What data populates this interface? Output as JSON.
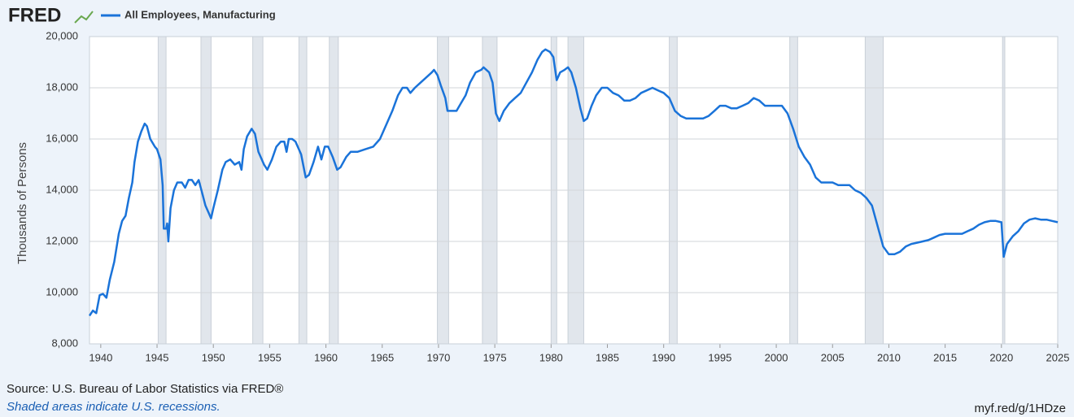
{
  "logo": "FRED",
  "chart_data": {
    "type": "line",
    "y_label": "Thousands of Persons",
    "x": [
      1939.0,
      1939.3,
      1939.6,
      1939.9,
      1940.2,
      1940.5,
      1940.8,
      1941.2,
      1941.6,
      1941.9,
      1942.2,
      1942.5,
      1942.8,
      1943.0,
      1943.3,
      1943.6,
      1943.9,
      1944.1,
      1944.4,
      1944.8,
      1945.0,
      1945.3,
      1945.5,
      1945.6,
      1945.8,
      1945.9,
      1946.0,
      1946.2,
      1946.5,
      1946.8,
      1947.2,
      1947.5,
      1947.8,
      1948.1,
      1948.4,
      1948.7,
      1949.0,
      1949.3,
      1949.6,
      1949.8,
      1950.0,
      1950.4,
      1950.8,
      1951.1,
      1951.5,
      1951.9,
      1952.3,
      1952.5,
      1952.7,
      1953.0,
      1953.4,
      1953.7,
      1954.0,
      1954.5,
      1954.8,
      1955.2,
      1955.6,
      1956.0,
      1956.3,
      1956.5,
      1956.7,
      1957.0,
      1957.3,
      1957.8,
      1958.2,
      1958.5,
      1958.9,
      1959.3,
      1959.6,
      1959.9,
      1960.2,
      1960.6,
      1961.0,
      1961.3,
      1961.8,
      1962.2,
      1962.8,
      1963.5,
      1964.2,
      1964.8,
      1965.4,
      1965.9,
      1966.4,
      1966.8,
      1967.2,
      1967.5,
      1967.9,
      1968.4,
      1968.9,
      1969.4,
      1969.6,
      1969.9,
      1970.2,
      1970.6,
      1970.8,
      1971.2,
      1971.6,
      1972.0,
      1972.4,
      1972.8,
      1973.3,
      1973.8,
      1974.0,
      1974.5,
      1974.8,
      1975.1,
      1975.4,
      1975.8,
      1976.3,
      1976.8,
      1977.3,
      1977.8,
      1978.3,
      1978.8,
      1979.2,
      1979.5,
      1979.9,
      1980.2,
      1980.5,
      1980.8,
      1981.2,
      1981.5,
      1981.8,
      1982.2,
      1982.6,
      1982.9,
      1983.2,
      1983.6,
      1984.0,
      1984.5,
      1985.0,
      1985.5,
      1986.0,
      1986.5,
      1987.0,
      1987.5,
      1988.0,
      1988.5,
      1989.0,
      1989.5,
      1990.0,
      1990.5,
      1991.0,
      1991.5,
      1992.0,
      1992.5,
      1993.0,
      1993.5,
      1994.0,
      1994.5,
      1995.0,
      1995.5,
      1996.0,
      1996.5,
      1997.0,
      1997.5,
      1998.0,
      1998.5,
      1999.0,
      1999.5,
      2000.0,
      2000.5,
      2001.0,
      2001.5,
      2002.0,
      2002.5,
      2003.0,
      2003.5,
      2004.0,
      2004.5,
      2005.0,
      2005.5,
      2006.0,
      2006.5,
      2007.0,
      2007.5,
      2008.0,
      2008.5,
      2009.0,
      2009.5,
      2010.0,
      2010.5,
      2011.0,
      2011.5,
      2012.0,
      2012.5,
      2013.0,
      2013.5,
      2014.0,
      2014.5,
      2015.0,
      2015.5,
      2016.0,
      2016.5,
      2017.0,
      2017.5,
      2018.0,
      2018.5,
      2019.0,
      2019.5,
      2020.0,
      2020.2,
      2020.5,
      2021.0,
      2021.5,
      2022.0,
      2022.5,
      2023.0,
      2023.5,
      2024.0,
      2024.5,
      2025.0
    ],
    "series": [
      {
        "name": "All Employees, Manufacturing",
        "color": "#1a73d9",
        "values": [
          9100,
          9300,
          9200,
          9900,
          9950,
          9800,
          10500,
          11200,
          12300,
          12800,
          13000,
          13700,
          14300,
          15100,
          15900,
          16300,
          16600,
          16500,
          16000,
          15700,
          15600,
          15200,
          14200,
          12500,
          12500,
          12700,
          12000,
          13300,
          14000,
          14300,
          14300,
          14100,
          14400,
          14400,
          14200,
          14400,
          13900,
          13400,
          13100,
          12900,
          13300,
          14000,
          14800,
          15100,
          15200,
          15000,
          15100,
          14800,
          15600,
          16100,
          16400,
          16200,
          15500,
          15000,
          14800,
          15200,
          15700,
          15900,
          15900,
          15500,
          16000,
          16000,
          15900,
          15400,
          14500,
          14600,
          15100,
          15700,
          15200,
          15700,
          15700,
          15300,
          14800,
          14900,
          15300,
          15500,
          15500,
          15600,
          15700,
          16000,
          16600,
          17100,
          17700,
          18000,
          18000,
          17800,
          18000,
          18200,
          18400,
          18600,
          18700,
          18500,
          18100,
          17600,
          17100,
          17100,
          17100,
          17400,
          17700,
          18200,
          18600,
          18700,
          18800,
          18600,
          18200,
          17000,
          16700,
          17100,
          17400,
          17600,
          17800,
          18200,
          18600,
          19100,
          19400,
          19500,
          19400,
          19200,
          18300,
          18600,
          18700,
          18800,
          18600,
          18000,
          17200,
          16700,
          16800,
          17300,
          17700,
          18000,
          18000,
          17800,
          17700,
          17500,
          17500,
          17600,
          17800,
          17900,
          18000,
          17900,
          17800,
          17600,
          17100,
          16900,
          16800,
          16800,
          16800,
          16800,
          16900,
          17100,
          17300,
          17300,
          17200,
          17200,
          17300,
          17400,
          17600,
          17500,
          17300,
          17300,
          17300,
          17300,
          17000,
          16400,
          15700,
          15300,
          15000,
          14500,
          14300,
          14300,
          14300,
          14200,
          14200,
          14200,
          14000,
          13900,
          13700,
          13400,
          12600,
          11800,
          11500,
          11500,
          11600,
          11800,
          11900,
          11950,
          12000,
          12050,
          12150,
          12250,
          12300,
          12300,
          12300,
          12300,
          12400,
          12500,
          12650,
          12750,
          12800,
          12800,
          12750,
          11400,
          11900,
          12200,
          12400,
          12700,
          12850,
          12900,
          12850,
          12850,
          12800,
          12750
        ]
      }
    ],
    "recessions": [
      [
        1945.1,
        1945.8
      ],
      [
        1948.9,
        1949.8
      ],
      [
        1953.5,
        1954.4
      ],
      [
        1957.6,
        1958.3
      ],
      [
        1960.3,
        1961.1
      ],
      [
        1969.9,
        1970.9
      ],
      [
        1973.9,
        1975.2
      ],
      [
        1980.0,
        1980.5
      ],
      [
        1981.5,
        1982.9
      ],
      [
        1990.5,
        1991.2
      ],
      [
        2001.2,
        2001.9
      ],
      [
        2007.9,
        2009.5
      ],
      [
        2020.1,
        2020.3
      ]
    ],
    "recession_color": "#e1e6ec",
    "xlim": [
      1939,
      2025
    ],
    "ylim": [
      8000,
      20000
    ],
    "xticks": [
      1940,
      1945,
      1950,
      1955,
      1960,
      1965,
      1970,
      1975,
      1980,
      1985,
      1990,
      1995,
      2000,
      2005,
      2010,
      2015,
      2020,
      2025
    ],
    "yticks": [
      {
        "value": 8000,
        "label": "8,000"
      },
      {
        "value": 10000,
        "label": "10,000"
      },
      {
        "value": 12000,
        "label": "12,000"
      },
      {
        "value": 14000,
        "label": "14,000"
      },
      {
        "value": 16000,
        "label": "16,000"
      },
      {
        "value": 18000,
        "label": "18,000"
      },
      {
        "value": 20000,
        "label": "20,000"
      }
    ],
    "grid": true
  },
  "footer": {
    "source": "Source: U.S. Bureau of Labor Statistics via FRED®",
    "note": "Shaded areas indicate U.S. recessions.",
    "link": "myf.red/g/1HDze"
  }
}
